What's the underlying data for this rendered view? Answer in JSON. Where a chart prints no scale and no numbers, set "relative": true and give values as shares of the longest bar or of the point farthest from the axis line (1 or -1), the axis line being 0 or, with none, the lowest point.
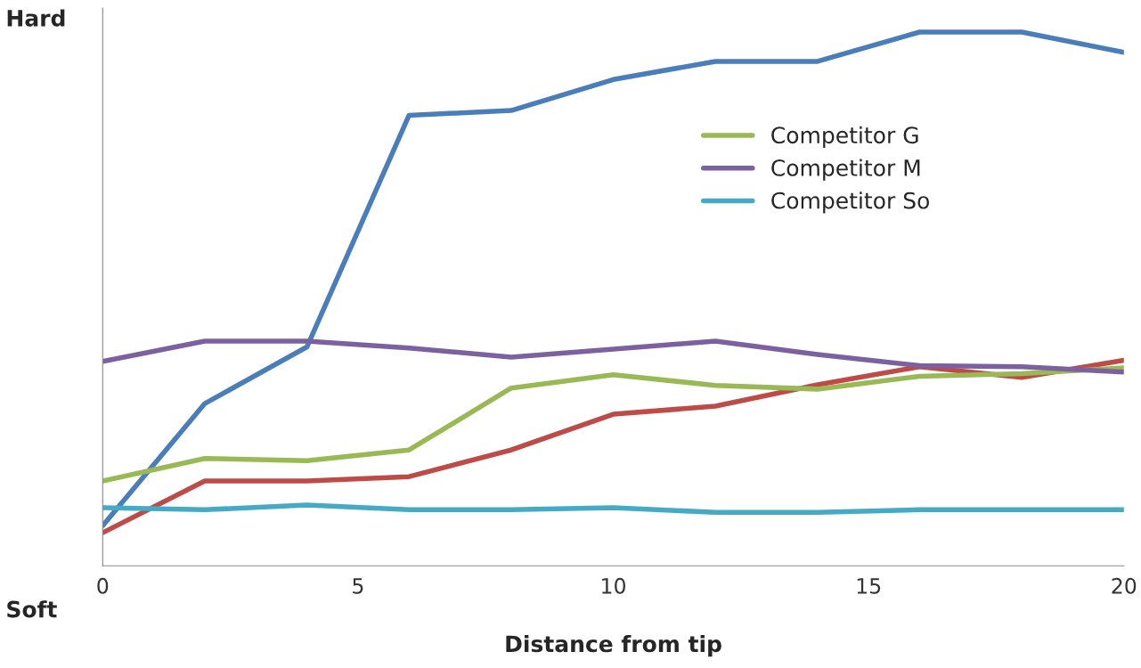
{
  "chart_data": {
    "type": "line",
    "xlabel": "Distance from tip",
    "relative": true,
    "x": [
      0,
      2,
      4,
      6,
      8,
      10,
      12,
      14,
      16,
      18,
      20
    ],
    "xlim": [
      0,
      20
    ],
    "xticks": [
      0,
      5,
      10,
      15,
      20
    ],
    "series": [
      {
        "color": "#be4b48",
        "values": [
          0.062,
          0.159,
          0.159,
          0.167,
          0.217,
          0.284,
          0.299,
          0.339,
          0.373,
          0.353,
          0.385
        ]
      },
      {
        "color": "#4a7ebb",
        "values": [
          0.075,
          0.304,
          0.41,
          0.844,
          0.853,
          0.911,
          0.945,
          0.945,
          1,
          1,
          0.962
        ]
      },
      {
        "name": "Competitor G",
        "color": "#98b954",
        "values": [
          0.159,
          0.201,
          0.197,
          0.217,
          0.333,
          0.358,
          0.338,
          0.331,
          0.355,
          0.36,
          0.371
        ]
      },
      {
        "name": "Competitor M",
        "color": "#7d60a0",
        "values": [
          0.383,
          0.421,
          0.421,
          0.408,
          0.391,
          0.406,
          0.421,
          0.396,
          0.375,
          0.373,
          0.363
        ]
      },
      {
        "name": "Competitor So",
        "color": "#46aac5",
        "values": [
          0.109,
          0.105,
          0.114,
          0.105,
          0.105,
          0.109,
          0.1,
          0.1,
          0.105,
          0.105,
          0.105
        ]
      }
    ],
    "annotations": [
      "Hard",
      "Soft"
    ],
    "legend": "right",
    "grid": false,
    "marker": "none",
    "line_style": "solid"
  }
}
